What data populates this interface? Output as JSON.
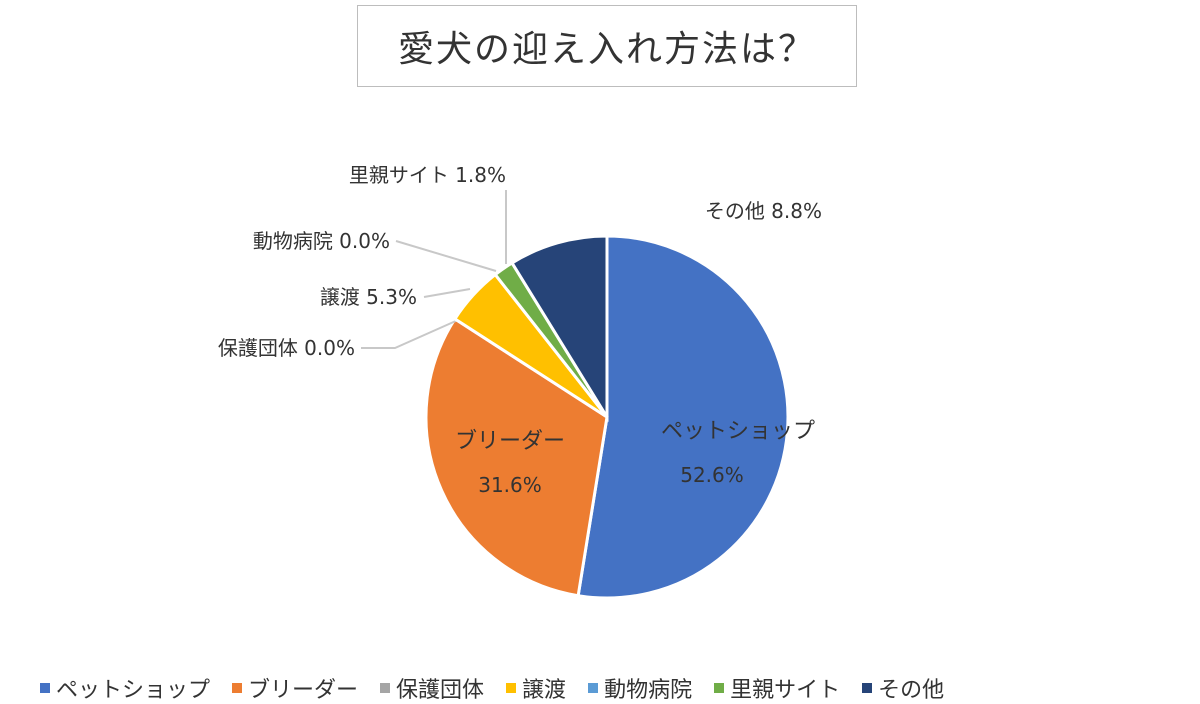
{
  "chart_data": {
    "type": "pie",
    "title": "愛犬の迎え入れ方法は？",
    "slices": [
      {
        "name": "ペットショップ",
        "value": 52.6,
        "label": "52.6%",
        "color": "#4472C4"
      },
      {
        "name": "ブリーダー",
        "value": 31.6,
        "label": "31.6%",
        "color": "#ED7D31"
      },
      {
        "name": "保護団体",
        "value": 0.0,
        "label": "0.0%",
        "color": "#A5A5A5"
      },
      {
        "name": "譲渡",
        "value": 5.3,
        "label": "5.3%",
        "color": "#FFC000"
      },
      {
        "name": "動物病院",
        "value": 0.0,
        "label": "0.0%",
        "color": "#5B9BD5"
      },
      {
        "name": "里親サイト",
        "value": 1.8,
        "label": "1.8%",
        "color": "#70AD47"
      },
      {
        "name": "その他",
        "value": 8.8,
        "label": "8.8%",
        "color": "#264478"
      }
    ],
    "legend_position": "bottom"
  }
}
